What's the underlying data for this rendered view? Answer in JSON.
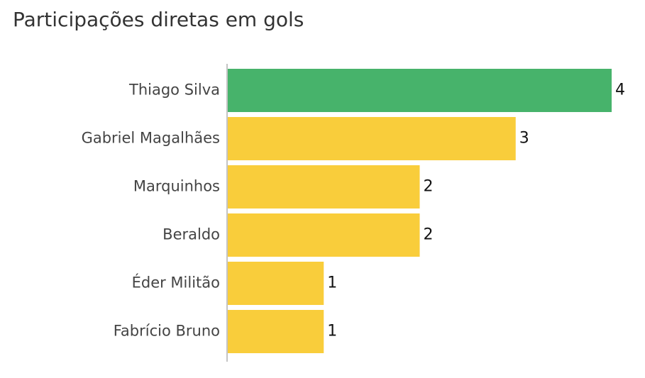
{
  "chart_data": {
    "type": "barh",
    "title": "Participações diretas em gols",
    "categories": [
      "Thiago Silva",
      "Gabriel Magalhães",
      "Marquinhos",
      "Beraldo",
      "Éder Militão",
      "Fabrício Bruno"
    ],
    "values": [
      4,
      3,
      2,
      2,
      1,
      1
    ],
    "colors": [
      "#47b36b",
      "#f9cd3b",
      "#f9cd3b",
      "#f9cd3b",
      "#f9cd3b",
      "#f9cd3b"
    ],
    "xlim": [
      0,
      4
    ]
  }
}
